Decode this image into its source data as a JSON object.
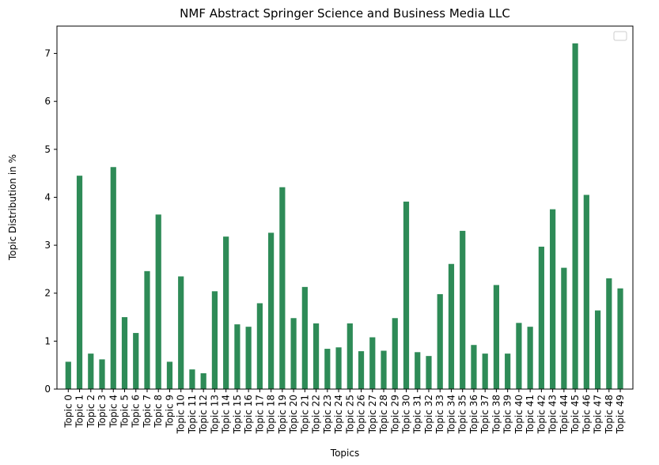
{
  "chart_data": {
    "type": "bar",
    "title": "NMF Abstract Springer Science and Business Media LLC",
    "xlabel": "Topics",
    "ylabel": "Topic Distribution in %",
    "ylim": [
      0,
      7.57
    ],
    "yticks": [
      0,
      1,
      2,
      3,
      4,
      5,
      6,
      7
    ],
    "grid": false,
    "legend": "top-right",
    "color": "#2e8b57",
    "categories": [
      "Topic 0",
      "Topic 1",
      "Topic 2",
      "Topic 3",
      "Topic 4",
      "Topic 5",
      "Topic 6",
      "Topic 7",
      "Topic 8",
      "Topic 9",
      "Topic 10",
      "Topic 11",
      "Topic 12",
      "Topic 13",
      "Topic 14",
      "Topic 15",
      "Topic 16",
      "Topic 17",
      "Topic 18",
      "Topic 19",
      "Topic 20",
      "Topic 21",
      "Topic 22",
      "Topic 23",
      "Topic 24",
      "Topic 25",
      "Topic 26",
      "Topic 27",
      "Topic 28",
      "Topic 29",
      "Topic 30",
      "Topic 31",
      "Topic 32",
      "Topic 33",
      "Topic 34",
      "Topic 35",
      "Topic 36",
      "Topic 37",
      "Topic 38",
      "Topic 39",
      "Topic 40",
      "Topic 41",
      "Topic 42",
      "Topic 43",
      "Topic 44",
      "Topic 45",
      "Topic 46",
      "Topic 47",
      "Topic 48",
      "Topic 49"
    ],
    "values": [
      0.57,
      4.45,
      0.74,
      0.62,
      4.63,
      1.5,
      1.17,
      2.46,
      3.64,
      0.57,
      2.35,
      0.41,
      0.33,
      2.04,
      3.18,
      1.35,
      1.3,
      1.79,
      3.26,
      4.21,
      1.48,
      2.13,
      1.37,
      0.84,
      0.87,
      1.37,
      0.79,
      1.08,
      0.8,
      1.48,
      3.91,
      0.77,
      0.69,
      1.98,
      2.61,
      3.3,
      0.92,
      0.74,
      2.17,
      0.74,
      1.38,
      1.3,
      2.97,
      3.75,
      2.53,
      7.21,
      4.05,
      1.64,
      2.31,
      2.1
    ]
  }
}
